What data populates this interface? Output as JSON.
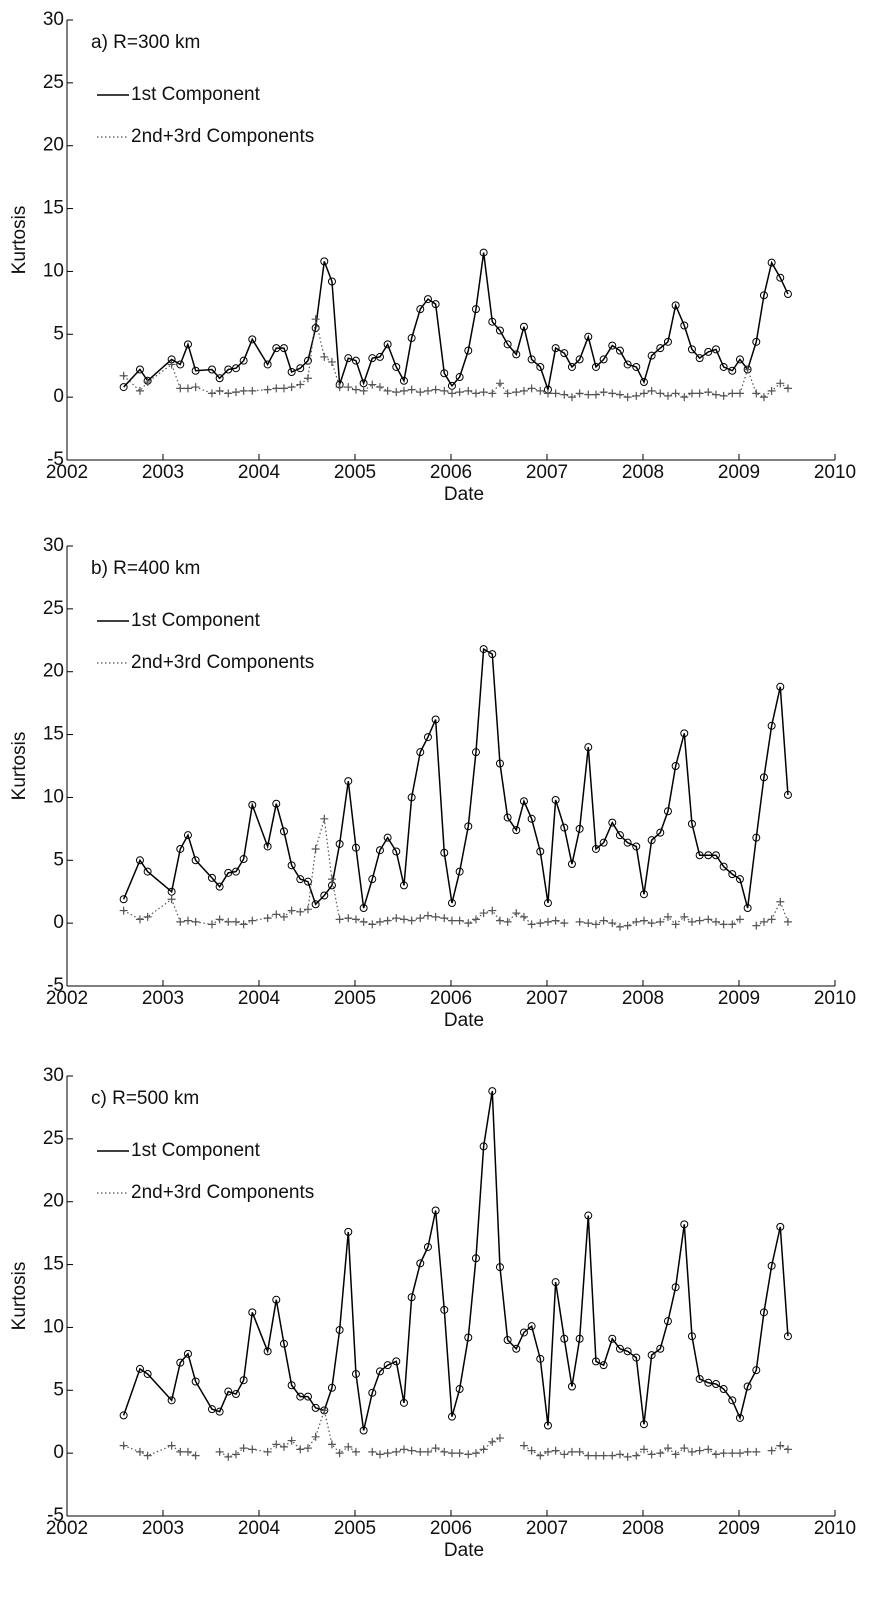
{
  "chart_data": [
    {
      "type": "line",
      "title": "a) R=300 km",
      "xlabel": "Date",
      "ylabel": "Kurtosis",
      "xlim": [
        2002,
        2010
      ],
      "xticks": [
        2002,
        2003,
        2004,
        2005,
        2006,
        2007,
        2008,
        2009,
        2010
      ],
      "ylim": [
        -5,
        30
      ],
      "yticks": [
        -5,
        0,
        5,
        10,
        15,
        20,
        25,
        30
      ],
      "grid": false,
      "legend": "upper left",
      "x": [
        2002.59,
        2002.76,
        2002.84,
        2003.09,
        2003.18,
        2003.26,
        2003.34,
        2003.51,
        2003.59,
        2003.68,
        2003.76,
        2003.84,
        2003.93,
        2004.09,
        2004.18,
        2004.26,
        2004.34,
        2004.43,
        2004.51,
        2004.59,
        2004.68,
        2004.76,
        2004.84,
        2004.93,
        2005.01,
        2005.09,
        2005.18,
        2005.26,
        2005.34,
        2005.43,
        2005.51,
        2005.59,
        2005.68,
        2005.76,
        2005.84,
        2005.93,
        2006.01,
        2006.09,
        2006.18,
        2006.26,
        2006.34,
        2006.43,
        2006.51,
        2006.59,
        2006.68,
        2006.76,
        2006.84,
        2006.93,
        2007.01,
        2007.09,
        2007.18,
        2007.26,
        2007.34,
        2007.43,
        2007.51,
        2007.59,
        2007.68,
        2007.76,
        2007.84,
        2007.93,
        2008.01,
        2008.09,
        2008.18,
        2008.26,
        2008.34,
        2008.43,
        2008.51,
        2008.59,
        2008.68,
        2008.76,
        2008.84,
        2008.93,
        2009.01,
        2009.09,
        2009.18,
        2009.26,
        2009.34,
        2009.43,
        2009.51
      ],
      "series": [
        {
          "name": "1st Component",
          "color": "#000000",
          "linestyle": "solid",
          "marker": "o",
          "values": [
            0.8,
            2.2,
            1.3,
            3.0,
            2.6,
            4.2,
            2.1,
            2.2,
            1.5,
            2.2,
            2.3,
            2.9,
            4.6,
            2.6,
            3.9,
            3.9,
            2.0,
            2.3,
            2.9,
            5.5,
            10.8,
            9.2,
            1.0,
            3.1,
            2.9,
            1.1,
            3.1,
            3.2,
            4.2,
            2.4,
            1.3,
            4.7,
            7.0,
            7.8,
            7.4,
            1.9,
            0.9,
            1.6,
            3.7,
            7.0,
            11.5,
            6.0,
            5.3,
            4.2,
            3.4,
            5.6,
            3.0,
            2.4,
            0.6,
            3.9,
            3.5,
            2.4,
            3.0,
            4.8,
            2.4,
            3.0,
            4.1,
            3.7,
            2.6,
            2.4,
            1.2,
            3.3,
            3.9,
            4.4,
            7.3,
            5.7,
            3.8,
            3.1,
            3.6,
            3.8,
            2.4,
            2.1,
            3.0,
            2.2,
            4.4,
            8.1,
            10.7,
            9.5,
            8.2
          ]
        },
        {
          "name": "2nd+3rd Components",
          "color": "#555555",
          "linestyle": "dotted",
          "marker": "+",
          "values": [
            1.7,
            0.5,
            1.2,
            2.6,
            0.7,
            0.7,
            0.8,
            0.3,
            0.5,
            0.3,
            0.4,
            0.5,
            0.5,
            0.6,
            0.7,
            0.7,
            0.8,
            1.0,
            1.5,
            6.2,
            3.2,
            2.8,
            0.8,
            0.8,
            0.6,
            0.5,
            1.0,
            0.8,
            0.5,
            0.4,
            0.5,
            0.6,
            0.4,
            0.5,
            0.6,
            0.5,
            0.3,
            0.4,
            0.5,
            0.3,
            0.4,
            0.3,
            1.1,
            0.3,
            0.4,
            0.5,
            0.7,
            0.5,
            0.3,
            0.3,
            0.2,
            0.0,
            0.3,
            0.2,
            0.2,
            0.4,
            0.3,
            0.2,
            0.0,
            0.1,
            0.3,
            0.5,
            0.3,
            0.1,
            0.3,
            0.0,
            0.3,
            0.3,
            0.4,
            0.2,
            0.1,
            0.3,
            0.3,
            2.2,
            0.3,
            0.0,
            0.5,
            1.1,
            0.7
          ]
        }
      ]
    },
    {
      "type": "line",
      "title": "b) R=400 km",
      "xlabel": "Date",
      "ylabel": "Kurtosis",
      "xlim": [
        2002,
        2010
      ],
      "xticks": [
        2002,
        2003,
        2004,
        2005,
        2006,
        2007,
        2008,
        2009,
        2010
      ],
      "ylim": [
        -5,
        30
      ],
      "yticks": [
        -5,
        0,
        5,
        10,
        15,
        20,
        25,
        30
      ],
      "grid": false,
      "legend": "upper left",
      "x": [
        2002.59,
        2002.76,
        2002.84,
        2003.09,
        2003.18,
        2003.26,
        2003.34,
        2003.51,
        2003.59,
        2003.68,
        2003.76,
        2003.84,
        2003.93,
        2004.09,
        2004.18,
        2004.26,
        2004.34,
        2004.43,
        2004.51,
        2004.59,
        2004.68,
        2004.76,
        2004.84,
        2004.93,
        2005.01,
        2005.09,
        2005.18,
        2005.26,
        2005.34,
        2005.43,
        2005.51,
        2005.59,
        2005.68,
        2005.76,
        2005.84,
        2005.93,
        2006.01,
        2006.09,
        2006.18,
        2006.26,
        2006.34,
        2006.43,
        2006.51,
        2006.59,
        2006.68,
        2006.76,
        2006.84,
        2006.93,
        2007.01,
        2007.09,
        2007.18,
        2007.26,
        2007.34,
        2007.43,
        2007.51,
        2007.59,
        2007.68,
        2007.76,
        2007.84,
        2007.93,
        2008.01,
        2008.09,
        2008.18,
        2008.26,
        2008.34,
        2008.43,
        2008.51,
        2008.59,
        2008.68,
        2008.76,
        2008.84,
        2008.93,
        2009.01,
        2009.09,
        2009.18,
        2009.26,
        2009.34,
        2009.43,
        2009.51
      ],
      "series": [
        {
          "name": "1st Component",
          "color": "#000000",
          "linestyle": "solid",
          "marker": "o",
          "values": [
            1.9,
            5.0,
            4.1,
            2.5,
            5.9,
            7.0,
            5.0,
            3.6,
            2.9,
            4.0,
            4.1,
            5.1,
            9.4,
            6.1,
            9.5,
            7.3,
            4.6,
            3.5,
            3.3,
            1.5,
            2.2,
            3.0,
            6.3,
            11.3,
            6.0,
            1.2,
            3.5,
            5.8,
            6.8,
            5.7,
            3.0,
            10.0,
            13.6,
            14.8,
            16.2,
            5.6,
            1.6,
            4.1,
            7.7,
            13.6,
            21.8,
            21.4,
            12.7,
            8.4,
            7.4,
            9.7,
            8.3,
            5.7,
            1.6,
            9.8,
            7.6,
            4.7,
            7.5,
            14.0,
            5.9,
            6.4,
            8.0,
            7.0,
            6.4,
            6.1,
            2.3,
            6.6,
            7.2,
            8.9,
            12.5,
            15.1,
            7.9,
            5.4,
            5.4,
            5.4,
            4.5,
            3.9,
            3.5,
            1.2,
            6.8,
            11.6,
            15.7,
            18.8,
            10.2
          ]
        },
        {
          "name": "2nd+3rd Components",
          "color": "#555555",
          "linestyle": "dotted",
          "marker": "+",
          "values": [
            1.0,
            0.3,
            0.5,
            1.9,
            0.1,
            0.2,
            0.1,
            -0.1,
            0.3,
            0.1,
            0.1,
            -0.1,
            0.2,
            0.4,
            0.7,
            0.5,
            1.0,
            0.9,
            1.1,
            5.9,
            8.3,
            3.5,
            0.3,
            0.4,
            0.3,
            0.1,
            -0.1,
            0.1,
            0.2,
            0.4,
            0.3,
            0.2,
            0.4,
            0.6,
            0.5,
            0.4,
            0.2,
            0.2,
            0.0,
            0.3,
            0.8,
            1.0,
            0.2,
            0.1,
            0.8,
            0.5,
            -0.1,
            0.0,
            0.1,
            0.2,
            0.0,
            null,
            0.1,
            0.0,
            -0.1,
            0.2,
            0.0,
            -0.3,
            -0.2,
            0.1,
            0.2,
            0.0,
            0.1,
            0.5,
            -0.1,
            0.5,
            0.1,
            0.2,
            0.3,
            0.1,
            -0.1,
            -0.1,
            0.3,
            null,
            -0.2,
            0.1,
            0.3,
            1.7,
            0.1
          ]
        }
      ]
    },
    {
      "type": "line",
      "title": "c) R=500 km",
      "xlabel": "Date",
      "ylabel": "Kurtosis",
      "xlim": [
        2002,
        2010
      ],
      "xticks": [
        2002,
        2003,
        2004,
        2005,
        2006,
        2007,
        2008,
        2009,
        2010
      ],
      "ylim": [
        -5,
        30
      ],
      "yticks": [
        -5,
        0,
        5,
        10,
        15,
        20,
        25,
        30
      ],
      "grid": false,
      "legend": "upper left",
      "x": [
        2002.59,
        2002.76,
        2002.84,
        2003.09,
        2003.18,
        2003.26,
        2003.34,
        2003.51,
        2003.59,
        2003.68,
        2003.76,
        2003.84,
        2003.93,
        2004.09,
        2004.18,
        2004.26,
        2004.34,
        2004.43,
        2004.51,
        2004.59,
        2004.68,
        2004.76,
        2004.84,
        2004.93,
        2005.01,
        2005.09,
        2005.18,
        2005.26,
        2005.34,
        2005.43,
        2005.51,
        2005.59,
        2005.68,
        2005.76,
        2005.84,
        2005.93,
        2006.01,
        2006.09,
        2006.18,
        2006.26,
        2006.34,
        2006.43,
        2006.51,
        2006.59,
        2006.68,
        2006.76,
        2006.84,
        2006.93,
        2007.01,
        2007.09,
        2007.18,
        2007.26,
        2007.34,
        2007.43,
        2007.51,
        2007.59,
        2007.68,
        2007.76,
        2007.84,
        2007.93,
        2008.01,
        2008.09,
        2008.18,
        2008.26,
        2008.34,
        2008.43,
        2008.51,
        2008.59,
        2008.68,
        2008.76,
        2008.84,
        2008.93,
        2009.01,
        2009.09,
        2009.18,
        2009.26,
        2009.34,
        2009.43,
        2009.51
      ],
      "series": [
        {
          "name": "1st Component",
          "color": "#000000",
          "linestyle": "solid",
          "marker": "o",
          "values": [
            3.0,
            6.7,
            6.3,
            4.2,
            7.2,
            7.9,
            5.7,
            3.5,
            3.3,
            4.9,
            4.7,
            5.8,
            11.2,
            8.1,
            12.2,
            8.7,
            5.4,
            4.5,
            4.5,
            3.6,
            3.4,
            5.2,
            9.8,
            17.6,
            6.3,
            1.8,
            4.8,
            6.5,
            7.0,
            7.3,
            4.0,
            12.4,
            15.1,
            16.4,
            19.3,
            11.4,
            2.9,
            5.1,
            9.2,
            15.5,
            24.4,
            28.8,
            14.8,
            9.0,
            8.3,
            9.6,
            10.1,
            7.5,
            2.2,
            13.6,
            9.1,
            5.3,
            9.1,
            18.9,
            7.3,
            7.0,
            9.1,
            8.3,
            8.1,
            7.6,
            2.3,
            7.8,
            8.3,
            10.5,
            13.2,
            18.2,
            9.3,
            5.9,
            5.6,
            5.5,
            5.1,
            4.2,
            2.8,
            5.3,
            6.6,
            11.2,
            14.9,
            18.0,
            9.3
          ]
        },
        {
          "name": "2nd+3rd Components",
          "color": "#555555",
          "linestyle": "dotted",
          "marker": "+",
          "values": [
            0.6,
            0.1,
            -0.2,
            0.6,
            0.1,
            0.1,
            -0.2,
            null,
            0.1,
            -0.3,
            -0.1,
            0.4,
            0.3,
            0.1,
            0.7,
            0.5,
            1.0,
            0.3,
            0.4,
            1.3,
            3.4,
            0.7,
            0.0,
            0.5,
            0.1,
            null,
            0.1,
            -0.1,
            0.0,
            0.1,
            0.3,
            0.2,
            0.1,
            0.1,
            0.4,
            0.1,
            0.0,
            0.0,
            -0.1,
            0.0,
            0.3,
            0.9,
            1.2,
            null,
            null,
            0.6,
            0.2,
            -0.2,
            0.1,
            0.2,
            -0.1,
            0.1,
            0.1,
            -0.2,
            -0.2,
            -0.2,
            -0.2,
            -0.1,
            -0.3,
            -0.2,
            0.3,
            -0.1,
            0.0,
            0.4,
            -0.1,
            0.4,
            0.1,
            0.2,
            0.3,
            -0.1,
            0.0,
            0.0,
            0.0,
            0.1,
            0.1,
            null,
            0.2,
            0.6,
            0.3
          ]
        }
      ]
    }
  ]
}
